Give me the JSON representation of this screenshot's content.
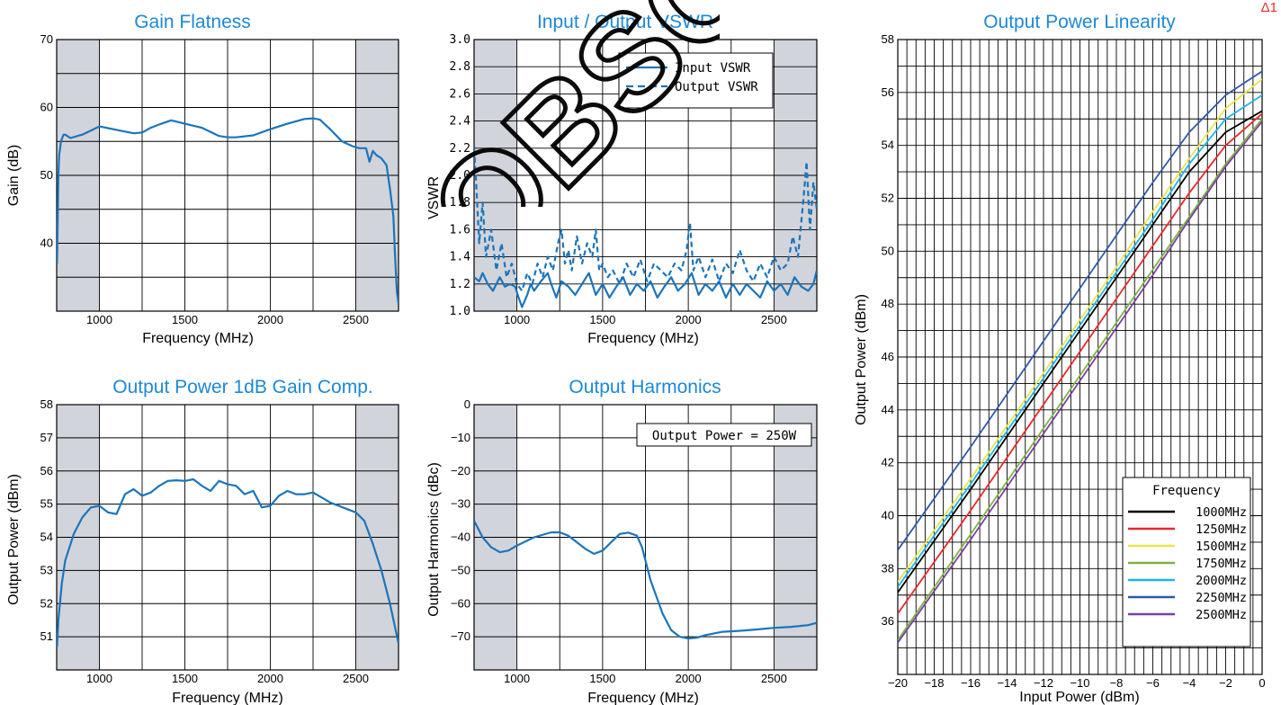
{
  "corner_label": "Δ1",
  "watermark": "OBSOLETE",
  "colors": {
    "title": "#1e88d6",
    "curve": "#1b75bb",
    "shade": "#d2d4db",
    "grid": "#000000"
  },
  "chart_data": [
    {
      "id": "gain",
      "type": "line",
      "title": "Gain Flatness",
      "xlabel": "Frequency (MHz)",
      "ylabel": "Gain (dB)",
      "xlim": [
        750,
        2750
      ],
      "ylim": [
        30,
        70
      ],
      "xticks": [
        1000,
        1500,
        2000,
        2500
      ],
      "yticks": [
        40,
        50,
        60,
        70
      ],
      "shaded_x": [
        [
          750,
          1000
        ],
        [
          2500,
          2750
        ]
      ],
      "series": [
        {
          "style": "solid",
          "x": [
            752,
            755,
            760,
            765,
            775,
            790,
            800,
            830,
            900,
            1000,
            1100,
            1200,
            1250,
            1300,
            1350,
            1420,
            1500,
            1600,
            1700,
            1750,
            1800,
            1900,
            2000,
            2100,
            2200,
            2250,
            2290,
            2350,
            2420,
            2480,
            2520,
            2560,
            2580,
            2600,
            2620,
            2650,
            2680,
            2700,
            2720,
            2730,
            2740,
            2750
          ],
          "y": [
            37,
            42,
            50,
            53,
            55,
            56,
            56,
            55.5,
            56,
            57.2,
            56.7,
            56.2,
            56.3,
            57,
            57.5,
            58.1,
            57.6,
            57,
            55.8,
            55.6,
            55.6,
            55.9,
            56.8,
            57.6,
            58.3,
            58.4,
            58.2,
            56.8,
            55,
            54.3,
            54,
            54,
            52,
            53.6,
            53,
            52.5,
            51.5,
            48,
            44,
            38,
            33,
            31
          ]
        }
      ]
    },
    {
      "id": "vswr",
      "type": "line",
      "title": "Input / Output VSWR",
      "xlabel": "Frequency (MHz)",
      "ylabel": "VSWR",
      "xlim": [
        750,
        2750
      ],
      "ylim": [
        1.0,
        3.0
      ],
      "xticks": [
        1000,
        1500,
        2000,
        2500
      ],
      "yticks": [
        1.0,
        1.2,
        1.4,
        1.6,
        1.8,
        2.0,
        2.2,
        2.4,
        2.6,
        2.8,
        3.0
      ],
      "ytick_labels": [
        "1.0",
        "1.2",
        "1.4",
        "1.6",
        "1.8",
        "2.0",
        "2.2",
        "2.4",
        "2.6",
        "2.8",
        "3.0"
      ],
      "shaded_x": [
        [
          750,
          1000
        ],
        [
          2500,
          2750
        ]
      ],
      "legend": {
        "position": "top-right",
        "entries": [
          {
            "label": "Input VSWR",
            "style": "solid"
          },
          {
            "label": "Output VSWR",
            "style": "dashed"
          }
        ]
      },
      "series": [
        {
          "name": "Input VSWR",
          "style": "solid",
          "x": [
            750,
            780,
            800,
            830,
            860,
            900,
            930,
            960,
            990,
            1010,
            1030,
            1060,
            1080,
            1100,
            1140,
            1180,
            1200,
            1230,
            1260,
            1300,
            1340,
            1380,
            1420,
            1460,
            1500,
            1540,
            1580,
            1620,
            1660,
            1700,
            1740,
            1780,
            1820,
            1860,
            1900,
            1940,
            1980,
            2020,
            2060,
            2100,
            2140,
            2180,
            2220,
            2260,
            2300,
            2340,
            2380,
            2420,
            2460,
            2500,
            2540,
            2580,
            2620,
            2660,
            2700,
            2730,
            2750
          ],
          "y": [
            1.25,
            1.22,
            1.28,
            1.2,
            1.15,
            1.25,
            1.18,
            1.2,
            1.18,
            1.1,
            1.03,
            1.12,
            1.2,
            1.15,
            1.22,
            1.28,
            1.2,
            1.1,
            1.22,
            1.18,
            1.12,
            1.2,
            1.28,
            1.12,
            1.2,
            1.1,
            1.18,
            1.25,
            1.12,
            1.2,
            1.15,
            1.22,
            1.1,
            1.18,
            1.25,
            1.15,
            1.2,
            1.28,
            1.12,
            1.2,
            1.15,
            1.22,
            1.1,
            1.2,
            1.12,
            1.2,
            1.15,
            1.1,
            1.22,
            1.15,
            1.2,
            1.12,
            1.25,
            1.18,
            1.15,
            1.2,
            1.3
          ]
        },
        {
          "name": "Output VSWR",
          "style": "dashed",
          "x": [
            750,
            760,
            780,
            800,
            820,
            850,
            880,
            910,
            940,
            970,
            1000,
            1030,
            1060,
            1090,
            1120,
            1150,
            1180,
            1210,
            1240,
            1260,
            1280,
            1300,
            1320,
            1350,
            1380,
            1410,
            1440,
            1460,
            1480,
            1500,
            1530,
            1560,
            1600,
            1640,
            1680,
            1720,
            1760,
            1800,
            1840,
            1880,
            1920,
            1960,
            1990,
            2010,
            2030,
            2060,
            2100,
            2140,
            2180,
            2220,
            2260,
            2300,
            2340,
            2380,
            2420,
            2460,
            2500,
            2540,
            2580,
            2610,
            2640,
            2670,
            2690,
            2710,
            2730,
            2750
          ],
          "y": [
            2.2,
            2.0,
            1.5,
            1.8,
            1.4,
            1.6,
            1.3,
            1.5,
            1.25,
            1.35,
            1.2,
            1.15,
            1.28,
            1.2,
            1.35,
            1.25,
            1.4,
            1.3,
            1.5,
            1.6,
            1.35,
            1.45,
            1.3,
            1.55,
            1.35,
            1.5,
            1.4,
            1.6,
            1.3,
            1.35,
            1.25,
            1.3,
            1.2,
            1.35,
            1.25,
            1.38,
            1.22,
            1.35,
            1.3,
            1.25,
            1.35,
            1.3,
            1.45,
            1.65,
            1.3,
            1.4,
            1.25,
            1.38,
            1.22,
            1.35,
            1.28,
            1.45,
            1.3,
            1.22,
            1.35,
            1.25,
            1.4,
            1.3,
            1.35,
            1.55,
            1.4,
            1.8,
            2.1,
            1.6,
            1.95,
            1.75
          ]
        }
      ]
    },
    {
      "id": "p1db",
      "type": "line",
      "title": "Output Power 1dB Gain Comp.",
      "xlabel": "Frequency (MHz)",
      "ylabel": "Output Power (dBm)",
      "xlim": [
        750,
        2750
      ],
      "ylim": [
        50,
        58
      ],
      "xticks": [
        1000,
        1500,
        2000,
        2500
      ],
      "yticks": [
        51,
        52,
        53,
        54,
        55,
        56,
        57,
        58
      ],
      "shaded_x": [
        [
          750,
          1000
        ],
        [
          2500,
          2750
        ]
      ],
      "series": [
        {
          "style": "solid",
          "x": [
            752,
            760,
            780,
            800,
            850,
            900,
            950,
            1000,
            1050,
            1100,
            1150,
            1200,
            1250,
            1300,
            1350,
            1400,
            1450,
            1500,
            1550,
            1600,
            1650,
            1700,
            1750,
            1800,
            1850,
            1900,
            1950,
            2000,
            2050,
            2100,
            2150,
            2200,
            2250,
            2300,
            2350,
            2400,
            2450,
            2500,
            2550,
            2600,
            2650,
            2700,
            2750
          ],
          "y": [
            50.7,
            51.5,
            52.6,
            53.3,
            54.1,
            54.6,
            54.9,
            54.95,
            54.75,
            54.7,
            55.3,
            55.45,
            55.25,
            55.35,
            55.55,
            55.7,
            55.72,
            55.7,
            55.75,
            55.55,
            55.4,
            55.7,
            55.6,
            55.55,
            55.3,
            55.4,
            54.9,
            54.95,
            55.25,
            55.4,
            55.3,
            55.3,
            55.35,
            55.2,
            55.05,
            54.95,
            54.85,
            54.75,
            54.5,
            53.8,
            53,
            52,
            50.8
          ]
        }
      ]
    },
    {
      "id": "harm",
      "type": "line",
      "title": "Output Harmonics",
      "xlabel": "Frequency (MHz)",
      "ylabel": "Output Harmonics (dBc)",
      "xlim": [
        750,
        2750
      ],
      "ylim": [
        -80,
        0
      ],
      "xticks": [
        1000,
        1500,
        2000,
        2500
      ],
      "yticks": [
        0,
        -10,
        -20,
        -30,
        -40,
        -50,
        -60,
        -70
      ],
      "ytick_labels": [
        "0",
        "−10",
        "−20",
        "−30",
        "−40",
        "−50",
        "−60",
        "−70"
      ],
      "shaded_x": [
        [
          750,
          1000
        ],
        [
          2500,
          2750
        ]
      ],
      "annotation": "Output Power = 250W",
      "series": [
        {
          "style": "solid",
          "x": [
            750,
            800,
            850,
            900,
            950,
            1000,
            1100,
            1200,
            1250,
            1300,
            1400,
            1450,
            1500,
            1550,
            1600,
            1650,
            1700,
            1730,
            1780,
            1850,
            1900,
            1950,
            2000,
            2050,
            2100,
            2200,
            2300,
            2400,
            2500,
            2600,
            2700,
            2750
          ],
          "y": [
            -35,
            -40,
            -43,
            -44.5,
            -44,
            -42.5,
            -40,
            -38.5,
            -38.5,
            -39.5,
            -43.5,
            -45,
            -44,
            -41.5,
            -39,
            -38.6,
            -39.5,
            -43,
            -53,
            -63,
            -68,
            -70,
            -70.5,
            -70.3,
            -69.5,
            -68.5,
            -68.2,
            -67.8,
            -67.3,
            -67,
            -66.5,
            -65.8
          ]
        }
      ]
    },
    {
      "id": "lin",
      "type": "line",
      "title": "Output Power Linearity",
      "xlabel": "Input Power (dBm)",
      "ylabel": "Output Power (dBm)",
      "xlim": [
        -20,
        0
      ],
      "ylim": [
        34,
        58
      ],
      "xticks": [
        -20,
        -18,
        -16,
        -14,
        -12,
        -10,
        -8,
        -6,
        -4,
        -2,
        0
      ],
      "xtick_labels": [
        "−20",
        "−18",
        "−16",
        "−14",
        "−12",
        "−10",
        "−8",
        "−6",
        "−4",
        "−2",
        "0"
      ],
      "yticks": [
        36,
        38,
        40,
        42,
        44,
        46,
        48,
        50,
        52,
        54,
        56,
        58
      ],
      "legend": {
        "position": "bottom-right",
        "title": "Frequency"
      },
      "series": [
        {
          "name": "1000MHz",
          "color": "#000000",
          "x": [
            -20,
            -16,
            -12,
            -8,
            -6,
            -4,
            -2,
            0
          ],
          "y": [
            37.1,
            41,
            45,
            49,
            51,
            53,
            54.5,
            55.3
          ]
        },
        {
          "name": "1250MHz",
          "color": "#e8282b",
          "x": [
            -20,
            -16,
            -12,
            -8,
            -6,
            -4,
            -2,
            0
          ],
          "y": [
            36.3,
            40.2,
            44.2,
            48.2,
            50.2,
            52.2,
            54,
            55.2
          ]
        },
        {
          "name": "1500MHz",
          "color": "#e6e64a",
          "x": [
            -20,
            -16,
            -12,
            -8,
            -6,
            -4,
            -2,
            0
          ],
          "y": [
            37.5,
            41.4,
            45.4,
            49.4,
            51.5,
            53.5,
            55.4,
            56.5
          ]
        },
        {
          "name": "1750MHz",
          "color": "#7cb342",
          "x": [
            -20,
            -16,
            -12,
            -8,
            -6,
            -4,
            -2,
            0
          ],
          "y": [
            35.3,
            39.3,
            43.3,
            47.3,
            49.3,
            51.3,
            53.3,
            55
          ]
        },
        {
          "name": "2000MHz",
          "color": "#1fb4ea",
          "x": [
            -20,
            -16,
            -12,
            -8,
            -6,
            -4,
            -2,
            0
          ],
          "y": [
            37.3,
            41.2,
            45.2,
            49.2,
            51.2,
            53.3,
            55.0,
            55.9
          ]
        },
        {
          "name": "2250MHz",
          "color": "#2e59a8",
          "x": [
            -20,
            -16,
            -12,
            -8,
            -6,
            -4,
            -2,
            0
          ],
          "y": [
            38.7,
            42.6,
            46.6,
            50.6,
            52.6,
            54.5,
            55.9,
            56.8
          ]
        },
        {
          "name": "2500MHz",
          "color": "#7b3fa0",
          "x": [
            -20,
            -16,
            -12,
            -8,
            -6,
            -4,
            -2,
            0
          ],
          "y": [
            35.2,
            39.1,
            43.1,
            47.1,
            49.1,
            51.2,
            53.2,
            54.9
          ]
        }
      ]
    }
  ]
}
